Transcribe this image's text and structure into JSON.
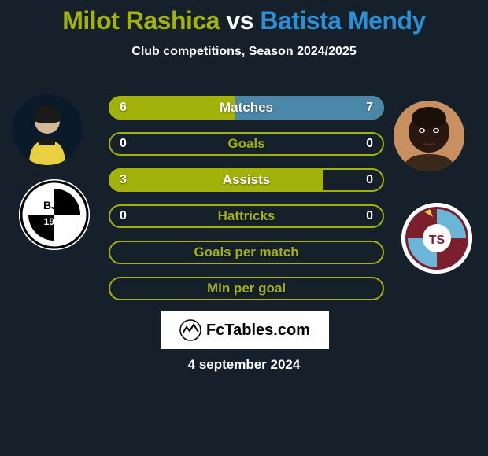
{
  "title": {
    "text_left": "Milot Rashica",
    "text_vs": "vs",
    "text_right": "Batista Mendy",
    "color_left": "#a3b20a",
    "color_vs": "#ffffff",
    "color_right": "#2a8fd6",
    "fontsize": 32
  },
  "subtitle": "Club competitions, Season 2024/2025",
  "colors": {
    "background": "#15202b",
    "bar_outline": "#a3b20a",
    "bar_fill_left": "#a3b20a",
    "bar_fill_right": "#4a87a8",
    "text": "#ffffff"
  },
  "club_left": {
    "name": "Besiktas",
    "bg": "#ffffff",
    "text": "BJK",
    "year": "1903"
  },
  "club_right": {
    "name": "Trabzonspor",
    "bg": "#ffffff",
    "primary": "#7b1e2e",
    "secondary": "#6bb6d6"
  },
  "bars": [
    {
      "label": "Matches",
      "left": "6",
      "right": "7",
      "left_frac": 0.46,
      "right_frac": 0.54
    },
    {
      "label": "Goals",
      "left": "0",
      "right": "0",
      "left_frac": 0.0,
      "right_frac": 0.0
    },
    {
      "label": "Assists",
      "left": "3",
      "right": "0",
      "left_frac": 0.78,
      "right_frac": 0.0
    },
    {
      "label": "Hattricks",
      "left": "0",
      "right": "0",
      "left_frac": 0.0,
      "right_frac": 0.0
    },
    {
      "label": "Goals per match",
      "left": "",
      "right": "",
      "left_frac": 0.0,
      "right_frac": 0.0
    },
    {
      "label": "Min per goal",
      "left": "",
      "right": "",
      "left_frac": 0.0,
      "right_frac": 0.0
    }
  ],
  "watermark": "FcTables.com",
  "date": "4 september 2024"
}
